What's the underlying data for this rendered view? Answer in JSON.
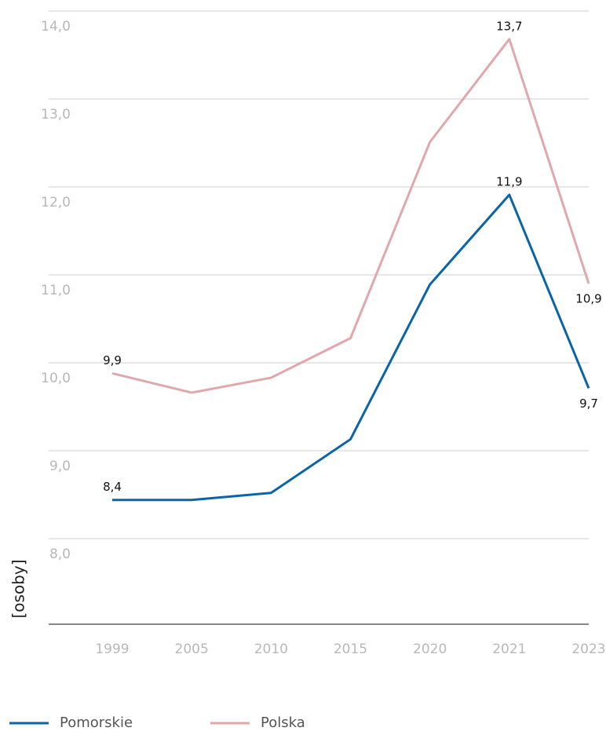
{
  "chart_data": {
    "type": "line",
    "y_label": "[osoby]",
    "categories": [
      "1999",
      "2005",
      "2010",
      "2015",
      "2020",
      "2021",
      "2023"
    ],
    "series": [
      {
        "name": "Pomorskie",
        "color": "#0a64a8",
        "values": [
          8.44,
          8.44,
          8.52,
          9.13,
          10.89,
          11.91,
          9.71
        ],
        "value_labels": [
          "8,4",
          null,
          null,
          null,
          null,
          "11,9",
          "9,7"
        ]
      },
      {
        "name": "Polska",
        "color": "#e0a8ac",
        "values": [
          9.88,
          9.66,
          9.83,
          10.28,
          12.51,
          13.68,
          10.9
        ],
        "value_labels": [
          "9,9",
          null,
          null,
          null,
          null,
          "13,7",
          "10,9"
        ]
      }
    ],
    "ylim": [
      7,
      14
    ],
    "yticks": [
      {
        "value": 8,
        "label": "8,0"
      },
      {
        "value": 9,
        "label": "9,0"
      },
      {
        "value": 10,
        "label": "10,0"
      },
      {
        "value": 11,
        "label": "11,0"
      },
      {
        "value": 12,
        "label": "12,0"
      },
      {
        "value": 13,
        "label": "13,0"
      },
      {
        "value": 14,
        "label": "14,0"
      }
    ],
    "grid": true
  }
}
